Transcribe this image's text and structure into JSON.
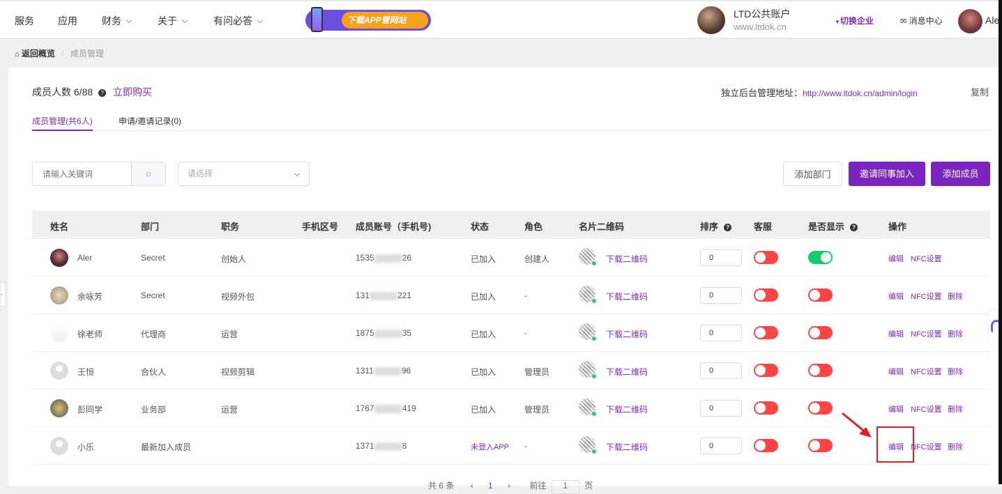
{
  "nav": {
    "items": [
      {
        "label": "服务",
        "dropdown": false
      },
      {
        "label": "应用",
        "dropdown": false
      },
      {
        "label": "财务",
        "dropdown": true
      },
      {
        "label": "关于",
        "dropdown": true
      },
      {
        "label": "有问必答",
        "dropdown": true
      }
    ],
    "banner": "下载APP管网站",
    "company": {
      "name": "LTD公共账户",
      "site": "www.ltdok.cn"
    },
    "switch": "切换企业",
    "messages": "消息中心",
    "user": "Aler"
  },
  "breadcrumb": {
    "home": "返回概览",
    "current": "成员管理"
  },
  "summary": {
    "label": "成员人数 6/88",
    "buy": "立即购买",
    "admin_label": "独立后台管理地址：",
    "admin_url": "http://www.ltdok.cn/admin/login",
    "copy": "复制"
  },
  "tabs": [
    {
      "label": "成员管理(共6人)",
      "active": true
    },
    {
      "label": "申请/邀请记录(0)",
      "active": false
    }
  ],
  "filters": {
    "search_placeholder": "请输入关键词",
    "select_placeholder": "请选择"
  },
  "buttons": {
    "add_dept": "添加部门",
    "invite": "邀请同事加入",
    "add_member": "添加成员"
  },
  "columns": [
    "姓名",
    "部门",
    "职务",
    "手机区号",
    "成员账号（手机号)",
    "状态",
    "角色",
    "名片二维码",
    "排序",
    "客服",
    "是否显示",
    "操作"
  ],
  "rows": [
    {
      "name": "Aler",
      "dept": "Secret",
      "title": "创始人",
      "phone_pre": "1535",
      "phone_suf": "26",
      "status": "已加入",
      "role": "创建人",
      "qr": "下载二维码",
      "sort": "0",
      "service": false,
      "show": true,
      "ops": [
        "编辑",
        "NFC设置"
      ]
    },
    {
      "name": "余咏芳",
      "dept": "Secret",
      "title": "视频外包",
      "phone_pre": "131",
      "phone_suf": "221",
      "status": "已加入",
      "role": "-",
      "qr": "下载二维码",
      "sort": "0",
      "service": false,
      "show": false,
      "ops": [
        "编辑",
        "NFC设置",
        "删除"
      ]
    },
    {
      "name": "徐老师",
      "dept": "代理商",
      "title": "运营",
      "phone_pre": "1875",
      "phone_suf": "35",
      "status": "已加入",
      "role": "-",
      "qr": "下载二维码",
      "sort": "0",
      "service": false,
      "show": false,
      "ops": [
        "编辑",
        "NFC设置",
        "删除"
      ]
    },
    {
      "name": "王恒",
      "dept": "合伙人",
      "title": "视频剪辑",
      "phone_pre": "1311",
      "phone_suf": "96",
      "status": "已加入",
      "role": "管理员",
      "qr": "下载二维码",
      "sort": "0",
      "service": false,
      "show": false,
      "ops": [
        "编辑",
        "NFC设置",
        "删除"
      ]
    },
    {
      "name": "彭同学",
      "dept": "业务部",
      "title": "运营",
      "phone_pre": "1767",
      "phone_suf": "419",
      "status": "已加入",
      "role": "管理员",
      "qr": "下载二维码",
      "sort": "0",
      "service": false,
      "show": false,
      "ops": [
        "编辑",
        "NFC设置",
        "删除"
      ]
    },
    {
      "name": "小乐",
      "dept": "最新加入成员",
      "title": "",
      "phone_pre": "1371",
      "phone_suf": "8",
      "status": "未登入APP",
      "role": "-",
      "qr": "下载二维码",
      "sort": "0",
      "service": false,
      "show": false,
      "ops": [
        "编辑",
        "NFC设置",
        "删除"
      ]
    }
  ],
  "pagination": {
    "total": "共 6 条",
    "page": "1",
    "goto": "前往",
    "page_input": "1",
    "unit": "页"
  },
  "colors": {
    "accent": "#7b2cbf",
    "toggle_off": "#ff4444",
    "toggle_on": "#13ce66",
    "annotation": "#e02020"
  }
}
